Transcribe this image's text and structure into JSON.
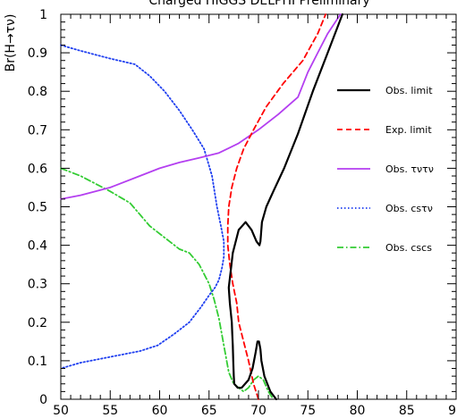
{
  "chart_data": {
    "type": "line",
    "title": "Charged HIGGS  DELPHI Preliminary",
    "xlabel": "",
    "ylabel": "Br(H→τν)",
    "xlim": [
      50,
      90
    ],
    "ylim": [
      0,
      1
    ],
    "x_ticks": [
      "50",
      "55",
      "60",
      "65",
      "70",
      "75",
      "80",
      "85",
      "90"
    ],
    "y_ticks": [
      "0",
      "0.1",
      "0.2",
      "0.3",
      "0.4",
      "0.5",
      "0.6",
      "0.7",
      "0.8",
      "0.9",
      "1"
    ],
    "grid": false,
    "legend_position": "right",
    "series": [
      {
        "name": "Obs. limit",
        "color": "#000000",
        "style": "solid",
        "x": [
          71.8,
          71.2,
          70.6,
          70.3,
          70.2,
          70.05,
          69.9,
          69.7,
          69.4,
          69.0,
          68.3,
          67.9,
          67.55,
          67.5,
          67.45,
          67.4,
          67.35,
          67.3,
          67.1,
          67.0,
          67.4,
          68.0,
          68.7,
          69.3,
          69.8,
          70.1,
          70.2,
          70.35,
          70.8,
          71.5,
          72.6,
          74.0,
          75.5,
          77.0,
          78.5
        ],
        "y": [
          0.0,
          0.02,
          0.06,
          0.1,
          0.13,
          0.15,
          0.15,
          0.12,
          0.08,
          0.05,
          0.03,
          0.03,
          0.04,
          0.06,
          0.1,
          0.14,
          0.17,
          0.2,
          0.25,
          0.29,
          0.38,
          0.44,
          0.46,
          0.44,
          0.41,
          0.4,
          0.41,
          0.46,
          0.5,
          0.54,
          0.6,
          0.69,
          0.8,
          0.9,
          1.0
        ]
      },
      {
        "name": "Exp. limit",
        "color": "#ff0000",
        "style": "dashed",
        "x": [
          70.0,
          69.5,
          69.0,
          68.5,
          68.0,
          67.8,
          67.4,
          67.1,
          66.9,
          66.9,
          67.0,
          67.3,
          67.8,
          68.5,
          69.5,
          70.8,
          72.5,
          74.5,
          76.0,
          76.8
        ],
        "y": [
          0.0,
          0.04,
          0.1,
          0.15,
          0.2,
          0.25,
          0.3,
          0.35,
          0.4,
          0.45,
          0.5,
          0.55,
          0.6,
          0.65,
          0.7,
          0.76,
          0.82,
          0.88,
          0.95,
          1.0
        ]
      },
      {
        "name": "Obs. τντν",
        "color": "#b43ff0",
        "style": "solid",
        "x": [
          50,
          52,
          55,
          58,
          60,
          62,
          64,
          66,
          68,
          70,
          72,
          74,
          75,
          76,
          77,
          78.3
        ],
        "y": [
          0.52,
          0.53,
          0.55,
          0.58,
          0.6,
          0.615,
          0.627,
          0.64,
          0.665,
          0.7,
          0.74,
          0.785,
          0.85,
          0.9,
          0.95,
          1.0
        ]
      },
      {
        "name": "Obs. csτν",
        "color": "#1f3ff0",
        "style": "dotted",
        "x": [
          50,
          52,
          55,
          57.5,
          59,
          60.5,
          62,
          63.3,
          64.5,
          65.3,
          65.8,
          66.2,
          66.5,
          66.5,
          66.3,
          66.0,
          65.6,
          65.0,
          64.2,
          63.0,
          61.5,
          59.8,
          58.0,
          55.0,
          52.0,
          50.0
        ],
        "y": [
          0.92,
          0.905,
          0.885,
          0.87,
          0.84,
          0.8,
          0.75,
          0.7,
          0.65,
          0.58,
          0.5,
          0.45,
          0.41,
          0.37,
          0.34,
          0.31,
          0.29,
          0.27,
          0.24,
          0.2,
          0.17,
          0.14,
          0.125,
          0.11,
          0.095,
          0.08
        ]
      },
      {
        "name": "Obs. cscs",
        "color": "#33cc33",
        "style": "dashdot",
        "x": [
          50,
          52,
          55,
          57,
          58,
          59,
          60,
          61,
          62,
          63,
          64,
          65,
          65.5,
          66,
          66.5,
          67,
          67.5,
          68,
          68.5,
          69,
          69.5,
          70,
          70.5,
          71,
          71.5
        ],
        "y": [
          0.6,
          0.58,
          0.54,
          0.51,
          0.48,
          0.45,
          0.43,
          0.41,
          0.39,
          0.38,
          0.35,
          0.3,
          0.26,
          0.21,
          0.14,
          0.07,
          0.04,
          0.03,
          0.02,
          0.03,
          0.05,
          0.06,
          0.05,
          0.02,
          0.0
        ]
      }
    ]
  }
}
